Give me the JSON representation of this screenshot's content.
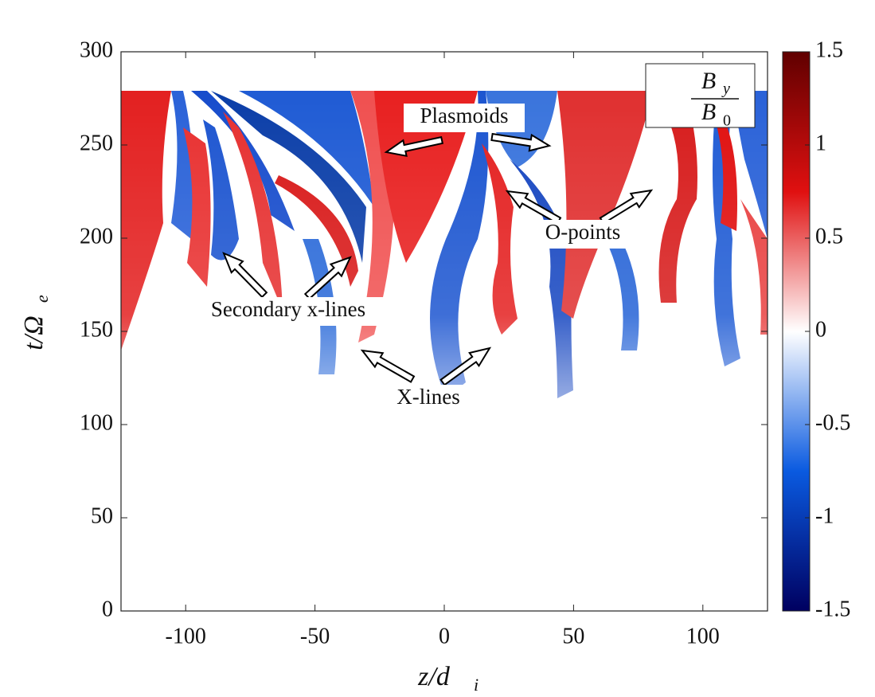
{
  "chart_data": {
    "type": "heatmap",
    "xlabel": "z/d",
    "xlabel_sub": "i",
    "ylabel": "t/Ω",
    "ylabel_sub": "e",
    "xlim": [
      -125,
      125
    ],
    "xticks": [
      -100,
      -50,
      0,
      50,
      100
    ],
    "ylim": [
      0,
      300
    ],
    "yticks": [
      0,
      50,
      100,
      150,
      200,
      250,
      300
    ],
    "colorbar": {
      "label": {
        "numerator": "B",
        "numerator_sub": "y",
        "denominator": "B",
        "denominator_sub": "0"
      },
      "clim": [
        -1.5,
        1.5
      ],
      "ticks": [
        -1.5,
        -1,
        -0.5,
        0,
        0.5,
        1,
        1.5
      ],
      "colormap": [
        "#000060",
        "#0a5ae0",
        "#ffffff",
        "#e01010",
        "#600000"
      ]
    },
    "annotations": [
      "Plasmoids",
      "O-points",
      "Secondary x-lines",
      "X-lines"
    ]
  }
}
